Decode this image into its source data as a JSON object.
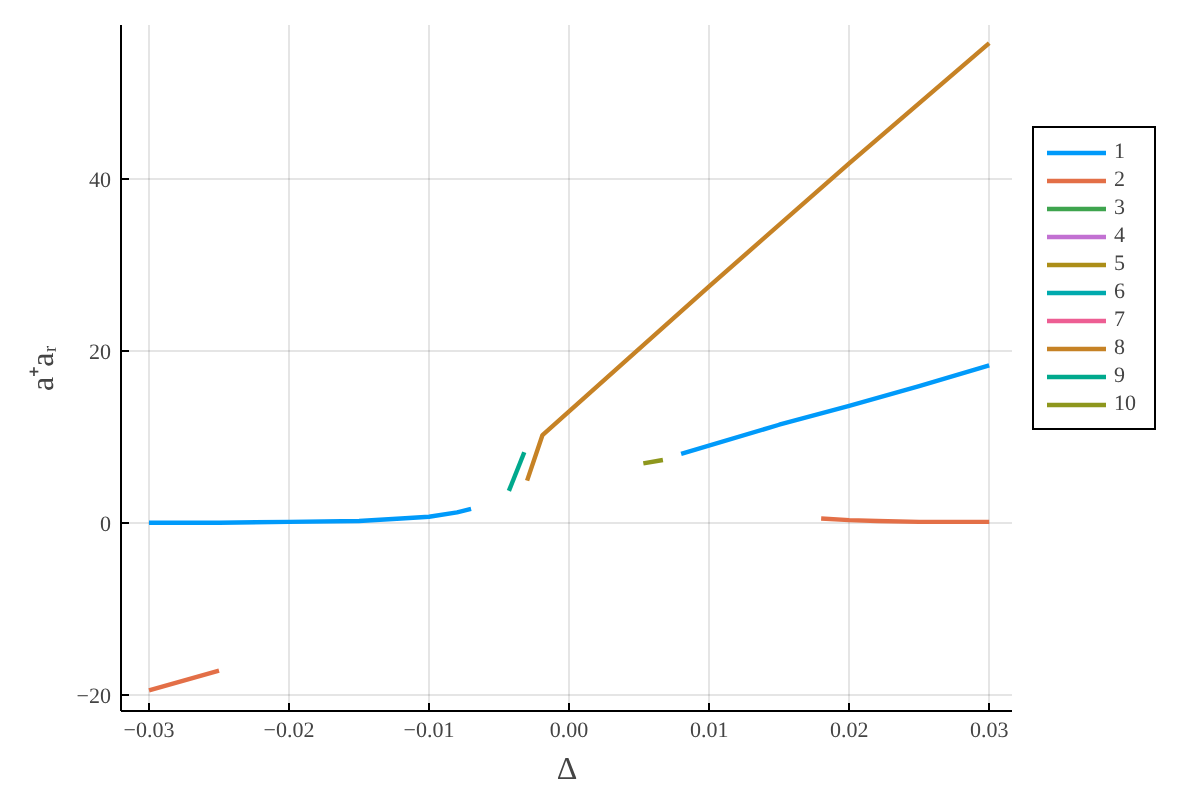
{
  "chart_data": {
    "type": "line",
    "xlabel": "Δ",
    "ylabel": "a⁺aᵣ",
    "xlim": [
      -0.032,
      0.0317
    ],
    "ylim": [
      -21.9,
      57.9
    ],
    "xticks": [
      {
        "value": -0.03,
        "label": "−0.03"
      },
      {
        "value": -0.02,
        "label": "−0.02"
      },
      {
        "value": -0.01,
        "label": "−0.01"
      },
      {
        "value": 0,
        "label": "0.00"
      },
      {
        "value": 0.01,
        "label": "0.01"
      },
      {
        "value": 0.02,
        "label": "0.02"
      },
      {
        "value": 0.03,
        "label": "0.03"
      }
    ],
    "yticks": [
      {
        "value": -20,
        "label": "−20"
      },
      0,
      20,
      40
    ],
    "grid": true,
    "legend": "right",
    "line_style": "solid",
    "series": [
      {
        "name": "1",
        "color": "#009afa",
        "x": [
          -0.03,
          -0.025,
          -0.02,
          -0.015,
          -0.012,
          -0.01,
          -0.008,
          -0.007,
          0.0,
          0.008,
          0.015,
          0.02,
          0.025,
          0.03
        ],
        "values": [
          0,
          0.0,
          0.1,
          0.2,
          0.5,
          0.7,
          1.2,
          1.6,
          null,
          8.0,
          11.4,
          13.6,
          15.9,
          18.3
        ]
      },
      {
        "name": "2",
        "color": "#e36f47",
        "x": [
          -0.03,
          -0.025,
          0.0,
          0.018,
          0.02,
          0.022,
          0.025,
          0.03
        ],
        "values": [
          -19.5,
          -17.2,
          null,
          0.5,
          0.3,
          0.2,
          0.1,
          0.1
        ]
      },
      {
        "name": "3",
        "color": "#3ea44e"
      },
      {
        "name": "4",
        "color": "#c271d2"
      },
      {
        "name": "5",
        "color": "#ac8e18"
      },
      {
        "name": "6",
        "color": "#00aaae"
      },
      {
        "name": "7",
        "color": "#ed5e93"
      },
      {
        "name": "8",
        "color": "#c68225",
        "x": [
          -0.003,
          -0.0019,
          0.01,
          0.02,
          0.03
        ],
        "values": [
          4.9,
          10.2,
          27.5,
          41.8,
          55.8
        ]
      },
      {
        "name": "9",
        "color": "#00a98d",
        "x": [
          -0.0043,
          -0.0032
        ],
        "values": [
          3.7,
          8.2
        ]
      },
      {
        "name": "10",
        "color": "#8e971d",
        "x": [
          0.0053,
          0.0067
        ],
        "values": [
          6.9,
          7.3
        ]
      }
    ]
  }
}
